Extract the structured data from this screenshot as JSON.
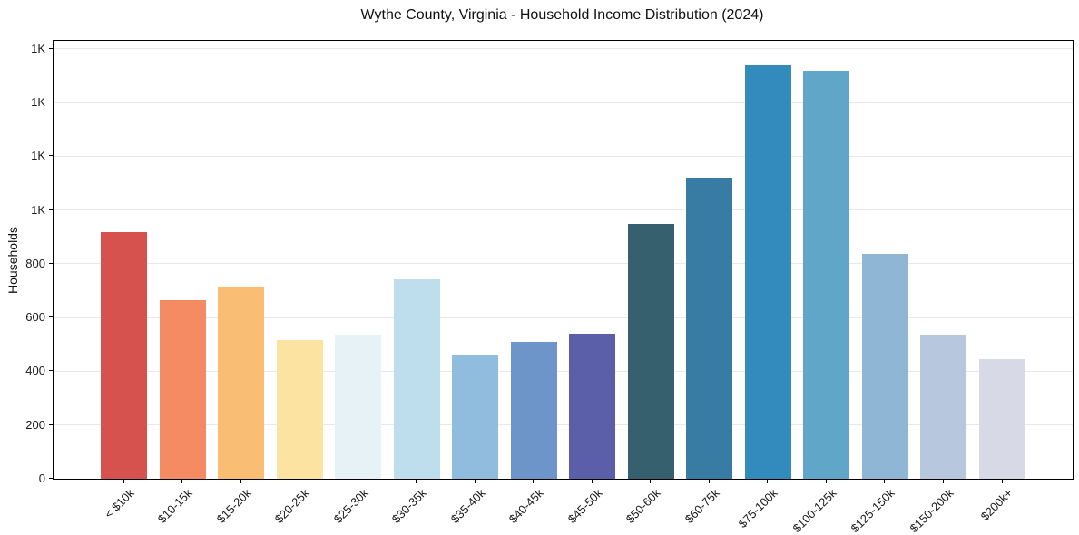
{
  "chart_data": {
    "type": "bar",
    "title": "Wythe County, Virginia - Household Income Distribution (2024)",
    "ylabel": "Households",
    "xlabel": "",
    "grid": true,
    "legend": false,
    "ylim": [
      0,
      1630
    ],
    "yticks": [
      {
        "value": 0,
        "label": "0"
      },
      {
        "value": 200,
        "label": "200"
      },
      {
        "value": 400,
        "label": "400"
      },
      {
        "value": 600,
        "label": "600"
      },
      {
        "value": 800,
        "label": "800"
      },
      {
        "value": 1000,
        "label": "1K"
      },
      {
        "value": 1200,
        "label": "1K"
      },
      {
        "value": 1400,
        "label": "1K"
      },
      {
        "value": 1600,
        "label": "1K"
      }
    ],
    "categories": [
      "< $10k",
      "$10-15k",
      "$15-20k",
      "$20-25k",
      "$25-30k",
      "$30-35k",
      "$35-40k",
      "$40-45k",
      "$45-50k",
      "$50-60k",
      "$60-75k",
      "$75-100k",
      "$100-125k",
      "$125-150k",
      "$150-200k",
      "$200k+"
    ],
    "values": [
      917,
      664,
      712,
      518,
      537,
      741,
      458,
      510,
      540,
      947,
      1120,
      1540,
      1520,
      838,
      535,
      446
    ],
    "bar_colors": [
      "#d6524e",
      "#f58b62",
      "#fabd74",
      "#fce3a2",
      "#e6f2f5",
      "#bedded",
      "#90bddd",
      "#6e95c9",
      "#5b5fa9",
      "#37606f",
      "#387ba3",
      "#338abc",
      "#5fa6c9",
      "#8fb6d5",
      "#b7c7de",
      "#d7d9e6"
    ],
    "axis_color": "#000000",
    "gridline_color": "#e8e8e8",
    "background_color": "#ffffff"
  }
}
